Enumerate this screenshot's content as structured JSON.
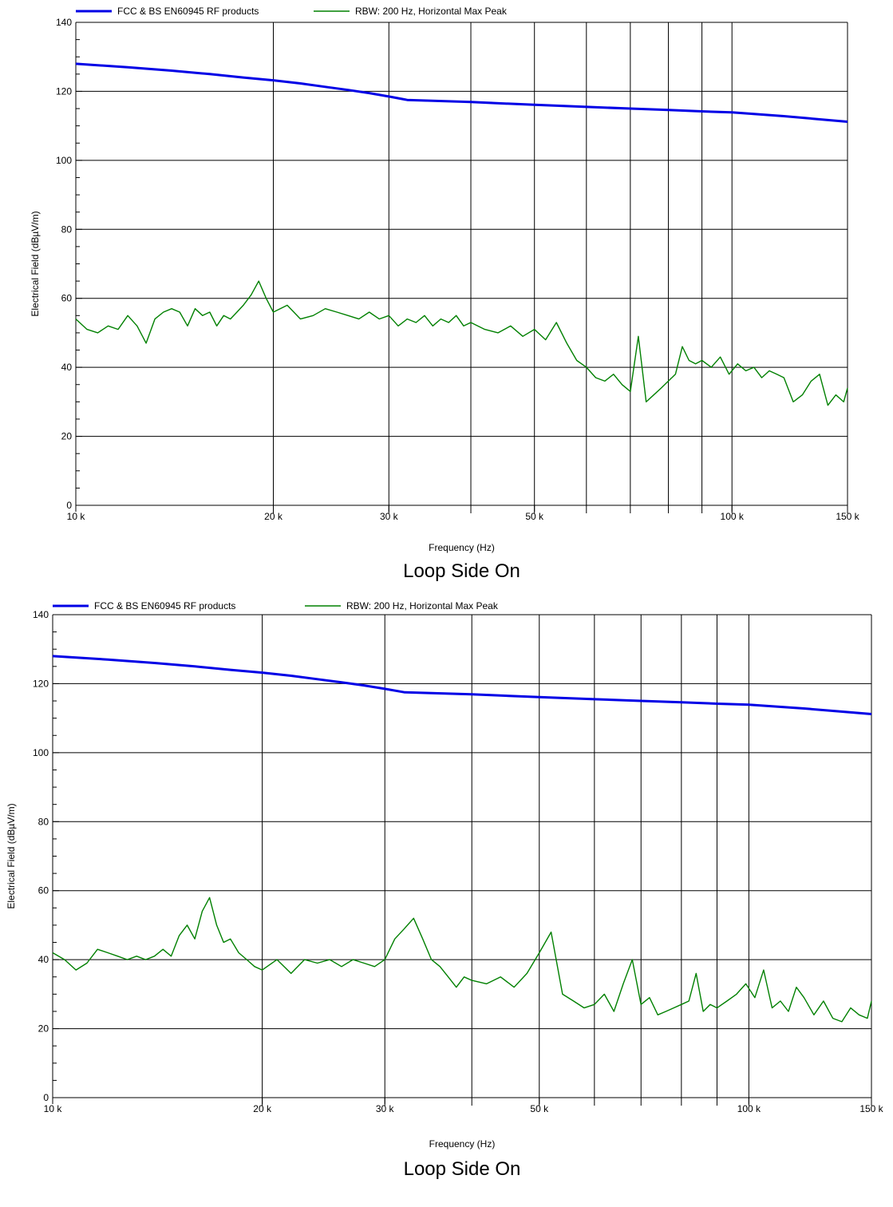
{
  "chart_data": [
    {
      "type": "line",
      "title": "Loop Side On",
      "xlabel": "Frequency (Hz)",
      "ylabel": "Electrical Field (dBµV/m)",
      "x_scale": "log",
      "xlim": [
        10000,
        150000
      ],
      "ylim": [
        0,
        140
      ],
      "grid": true,
      "legend_position": "top",
      "x_ticks": [
        10000,
        20000,
        30000,
        50000,
        100000,
        150000
      ],
      "x_tick_labels": [
        "10 k",
        "20 k",
        "30 k",
        "50 k",
        "100 k",
        "150 k"
      ],
      "x_gridlines": [
        20000,
        30000,
        40000,
        50000,
        60000,
        70000,
        80000,
        90000,
        100000
      ],
      "y_ticks": [
        0,
        20,
        40,
        60,
        80,
        100,
        120,
        140
      ],
      "y_tick_labels": [
        "0",
        "20",
        "40",
        "60",
        "80",
        "100",
        "120",
        "140"
      ],
      "series": [
        {
          "name": "FCC & BS EN60945 RF products",
          "color": "#0000e6",
          "x": [
            10000,
            12000,
            14000,
            16000,
            18000,
            20000,
            22000,
            24000,
            26000,
            28000,
            30000,
            32000,
            40000,
            50000,
            60000,
            70000,
            80000,
            90000,
            100000,
            120000,
            150000
          ],
          "values": [
            128,
            127,
            126,
            125,
            124,
            123.2,
            122.3,
            121.3,
            120.4,
            119.5,
            118.5,
            117.5,
            116.9,
            116.1,
            115.5,
            115,
            114.6,
            114.2,
            113.9,
            112.8,
            111.2
          ]
        },
        {
          "name": "RBW: 200 Hz, Horizontal Max Peak",
          "color": "#008000",
          "x": [
            10000,
            10400,
            10800,
            11200,
            11600,
            12000,
            12400,
            12800,
            13200,
            13600,
            14000,
            14400,
            14800,
            15200,
            15600,
            16000,
            16400,
            16800,
            17200,
            17600,
            18000,
            18500,
            19000,
            19500,
            20000,
            21000,
            22000,
            23000,
            24000,
            25000,
            26000,
            27000,
            28000,
            29000,
            30000,
            31000,
            32000,
            33000,
            34000,
            35000,
            36000,
            37000,
            38000,
            39000,
            40000,
            42000,
            44000,
            46000,
            48000,
            50000,
            52000,
            54000,
            56000,
            58000,
            60000,
            62000,
            64000,
            66000,
            68000,
            70000,
            72000,
            74000,
            76000,
            78000,
            80000,
            82000,
            84000,
            86000,
            88000,
            90000,
            93000,
            96000,
            99000,
            102000,
            105000,
            108000,
            111000,
            114000,
            117000,
            120000,
            124000,
            128000,
            132000,
            136000,
            140000,
            144000,
            148000,
            150000
          ],
          "values": [
            54,
            51,
            50,
            52,
            51,
            55,
            52,
            47,
            54,
            56,
            57,
            56,
            52,
            57,
            55,
            56,
            52,
            55,
            54,
            56,
            58,
            61,
            65,
            60,
            56,
            58,
            54,
            55,
            57,
            56,
            55,
            54,
            56,
            54,
            55,
            52,
            54,
            53,
            55,
            52,
            54,
            53,
            55,
            52,
            53,
            51,
            50,
            52,
            49,
            51,
            48,
            53,
            47,
            42,
            40,
            37,
            36,
            38,
            35,
            33,
            49,
            30,
            32,
            34,
            36,
            38,
            46,
            42,
            41,
            42,
            40,
            43,
            38,
            41,
            39,
            40,
            37,
            39,
            38,
            37,
            30,
            32,
            36,
            38,
            29,
            32,
            30,
            34
          ]
        }
      ]
    },
    {
      "type": "line",
      "title": "Loop Side On",
      "xlabel": "Frequency (Hz)",
      "ylabel": "Electrical Field (dBµV/m)",
      "x_scale": "log",
      "xlim": [
        10000,
        150000
      ],
      "ylim": [
        0,
        140
      ],
      "grid": true,
      "legend_position": "top",
      "x_ticks": [
        10000,
        20000,
        30000,
        50000,
        100000,
        150000
      ],
      "x_tick_labels": [
        "10 k",
        "20 k",
        "30 k",
        "50 k",
        "100 k",
        "150 k"
      ],
      "x_gridlines": [
        20000,
        30000,
        40000,
        50000,
        60000,
        70000,
        80000,
        90000,
        100000
      ],
      "y_ticks": [
        0,
        20,
        40,
        60,
        80,
        100,
        120,
        140
      ],
      "y_tick_labels": [
        "0",
        "20",
        "40",
        "60",
        "80",
        "100",
        "120",
        "140"
      ],
      "series": [
        {
          "name": "FCC & BS EN60945 RF products",
          "color": "#0000e6",
          "x": [
            10000,
            12000,
            14000,
            16000,
            18000,
            20000,
            22000,
            24000,
            26000,
            28000,
            30000,
            32000,
            40000,
            50000,
            60000,
            70000,
            80000,
            90000,
            100000,
            120000,
            150000
          ],
          "values": [
            128,
            127,
            126,
            125,
            124,
            123.2,
            122.3,
            121.3,
            120.4,
            119.5,
            118.5,
            117.5,
            116.9,
            116.1,
            115.5,
            115,
            114.6,
            114.2,
            113.9,
            112.8,
            111.2
          ]
        },
        {
          "name": "RBW: 200 Hz, Horizontal Max Peak",
          "color": "#008000",
          "x": [
            10000,
            10400,
            10800,
            11200,
            11600,
            12000,
            12400,
            12800,
            13200,
            13600,
            14000,
            14400,
            14800,
            15200,
            15600,
            16000,
            16400,
            16800,
            17200,
            17600,
            18000,
            18500,
            19000,
            19500,
            20000,
            21000,
            22000,
            23000,
            24000,
            25000,
            26000,
            27000,
            28000,
            29000,
            30000,
            31000,
            32000,
            33000,
            34000,
            35000,
            36000,
            37000,
            38000,
            39000,
            40000,
            42000,
            44000,
            46000,
            48000,
            50000,
            52000,
            54000,
            56000,
            58000,
            60000,
            62000,
            64000,
            66000,
            68000,
            70000,
            72000,
            74000,
            76000,
            78000,
            80000,
            82000,
            84000,
            86000,
            88000,
            90000,
            93000,
            96000,
            99000,
            102000,
            105000,
            108000,
            111000,
            114000,
            117000,
            120000,
            124000,
            128000,
            132000,
            136000,
            140000,
            144000,
            148000,
            150000
          ],
          "values": [
            42,
            40,
            37,
            39,
            43,
            42,
            41,
            40,
            41,
            40,
            41,
            43,
            41,
            47,
            50,
            46,
            54,
            58,
            50,
            45,
            46,
            42,
            40,
            38,
            37,
            40,
            36,
            40,
            39,
            40,
            38,
            40,
            39,
            38,
            40,
            46,
            49,
            52,
            46,
            40,
            38,
            35,
            32,
            35,
            34,
            33,
            35,
            32,
            36,
            42,
            48,
            30,
            28,
            26,
            27,
            30,
            25,
            33,
            40,
            27,
            29,
            24,
            25,
            26,
            27,
            28,
            36,
            25,
            27,
            26,
            28,
            30,
            33,
            29,
            37,
            26,
            28,
            25,
            32,
            29,
            24,
            28,
            23,
            22,
            26,
            24,
            23,
            28
          ]
        }
      ]
    }
  ]
}
